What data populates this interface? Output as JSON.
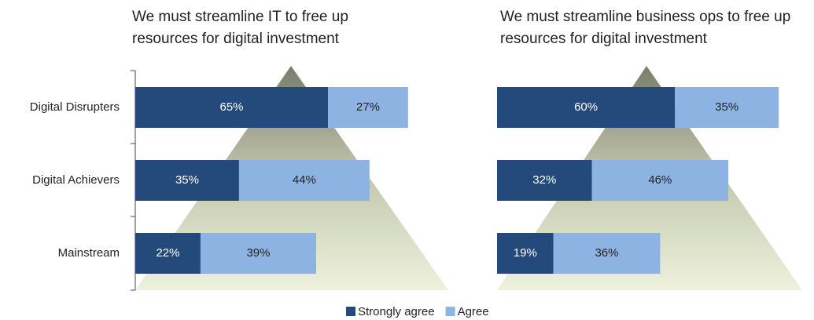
{
  "chart_data": [
    {
      "type": "bar",
      "orientation": "horizontal",
      "stacked": true,
      "title": "We must streamline IT to free up resources for digital investment",
      "categories": [
        "Digital Disrupters",
        "Digital Achievers",
        "Mainstream"
      ],
      "xlim": [
        0,
        100
      ],
      "series": [
        {
          "name": "Strongly agree",
          "color": "#244a7c",
          "values": [
            65,
            35,
            22
          ],
          "value_labels": [
            "65%",
            "35%",
            "22%"
          ]
        },
        {
          "name": "Agree",
          "color": "#8db3e2",
          "values": [
            27,
            44,
            39
          ],
          "value_labels": [
            "27%",
            "44%",
            "39%"
          ]
        }
      ]
    },
    {
      "type": "bar",
      "orientation": "horizontal",
      "stacked": true,
      "title": "We must streamline business ops to free up resources for digital investment",
      "xlim": [
        0,
        100
      ],
      "series": [
        {
          "color": "#244a7c",
          "values": [
            60,
            32,
            19
          ],
          "value_labels": [
            "60%",
            "32%",
            "19%"
          ]
        },
        {
          "color": "#8db3e2",
          "values": [
            35,
            46,
            36
          ],
          "value_labels": [
            "35%",
            "46%",
            "36%"
          ]
        }
      ]
    }
  ]
}
